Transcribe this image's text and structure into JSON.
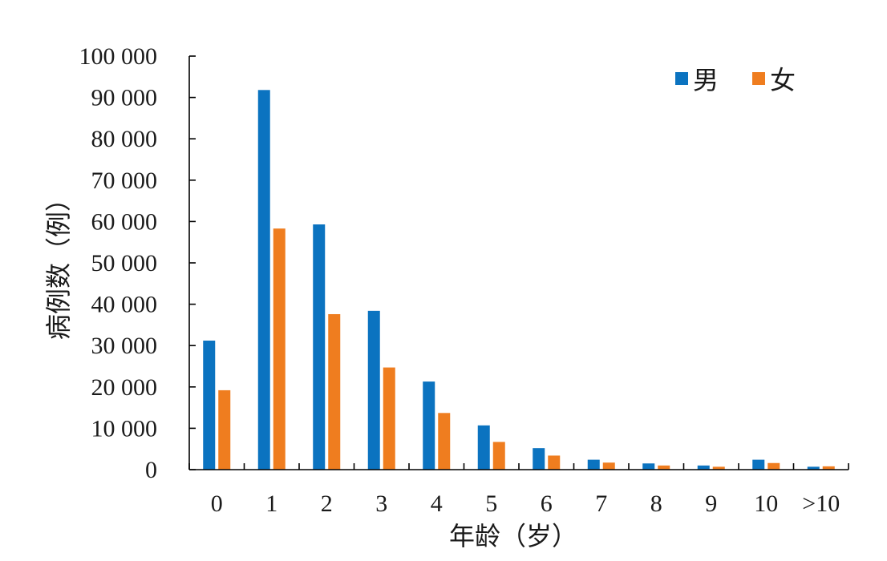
{
  "chart_data": {
    "type": "bar",
    "categories": [
      "0",
      "1",
      "2",
      "3",
      "4",
      "5",
      "6",
      "7",
      "8",
      "9",
      "10",
      ">10"
    ],
    "series": [
      {
        "name": "男",
        "color": "#0b73c0",
        "values": [
          31200,
          91800,
          59300,
          38400,
          21300,
          10700,
          5200,
          2400,
          1500,
          1000,
          2400,
          700
        ]
      },
      {
        "name": "女",
        "color": "#ef7d1f",
        "values": [
          19200,
          58300,
          37600,
          24700,
          13700,
          6700,
          3400,
          1700,
          1000,
          700,
          1600,
          800
        ]
      }
    ],
    "ylim": [
      0,
      100000
    ],
    "yticks": [
      0,
      10000,
      20000,
      30000,
      40000,
      50000,
      60000,
      70000,
      80000,
      90000,
      100000
    ],
    "ytick_labels": [
      "0",
      "10 000",
      "20 000",
      "30 000",
      "40 000",
      "50 000",
      "60 000",
      "70 000",
      "80 000",
      "90 000",
      "100 000"
    ],
    "xlabel": "年龄（岁）",
    "ylabel": "病例数（例）",
    "legend_position": "top-right",
    "grid": false
  }
}
